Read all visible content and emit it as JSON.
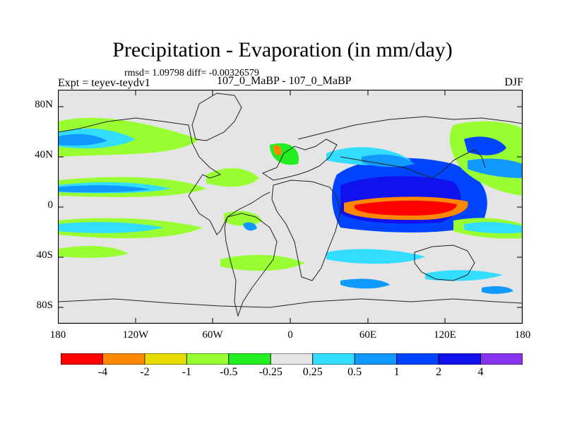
{
  "title": "Precipitation - Evaporation (in mm/day)",
  "stats": "rmsd= 1.09798 diff= -0.00326579",
  "experiment": "Expt = teyev-teydv1",
  "subtitle": "107_0_MaBP - 107_0_MaBP",
  "season": "DJF",
  "lat_labels": [
    "80N",
    "40N",
    "0",
    "40S",
    "80S"
  ],
  "lon_labels": [
    "180",
    "120W",
    "60W",
    "0",
    "60E",
    "120E",
    "180"
  ],
  "colorbar": {
    "colors": [
      "#ff0000",
      "#ff8800",
      "#e8dc00",
      "#99ff33",
      "#22ee22",
      "#e5e5e5",
      "#33ddff",
      "#1199ff",
      "#0044ff",
      "#1111ee",
      "#8833ee"
    ],
    "labels": [
      "-4",
      "-2",
      "-1",
      "-0.5",
      "-0.25",
      "0.25",
      "0.5",
      "1",
      "2",
      "4"
    ]
  },
  "colors": {
    "land_bg": "#e5e5e5",
    "coast": "#222222"
  }
}
